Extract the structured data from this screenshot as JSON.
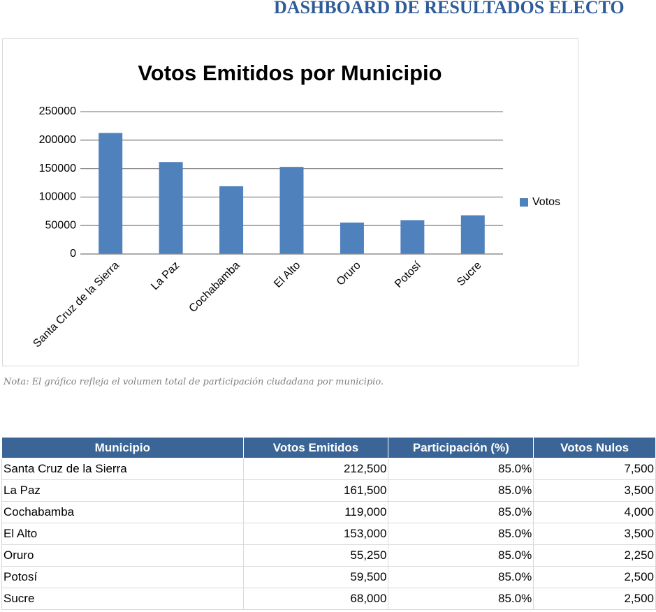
{
  "header": {
    "title": "DASHBOARD DE RESULTADOS ELECTO"
  },
  "chart_data": {
    "type": "bar",
    "title": "Votos Emitidos por Municipio",
    "categories": [
      "Santa Cruz de la Sierra",
      "La Paz",
      "Cochabamba",
      "El Alto",
      "Oruro",
      "Potosí",
      "Sucre"
    ],
    "series": [
      {
        "name": "Votos",
        "color": "#4f81bd",
        "values": [
          212500,
          161500,
          119000,
          153000,
          55250,
          59500,
          68000
        ]
      }
    ],
    "ylim": [
      0,
      250000
    ],
    "yticks": [
      0,
      50000,
      100000,
      150000,
      200000,
      250000
    ],
    "grid": true,
    "legend": "right"
  },
  "note": "Nota: El gráfico refleja el volumen total de participación ciudadana por municipio.",
  "table": {
    "columns": [
      "Municipio",
      "Votos Emitidos",
      "Participación (%)",
      "Votos Nulos"
    ],
    "rows": [
      [
        "Santa Cruz de la Sierra",
        "212,500",
        "85.0%",
        "7,500"
      ],
      [
        "La Paz",
        "161,500",
        "85.0%",
        "3,500"
      ],
      [
        "Cochabamba",
        "119,000",
        "85.0%",
        "4,000"
      ],
      [
        "El Alto",
        "153,000",
        "85.0%",
        "3,500"
      ],
      [
        "Oruro",
        "55,250",
        "85.0%",
        "2,250"
      ],
      [
        "Potosí",
        "59,500",
        "85.0%",
        "2,500"
      ],
      [
        "Sucre",
        "68,000",
        "85.0%",
        "2,500"
      ]
    ]
  }
}
